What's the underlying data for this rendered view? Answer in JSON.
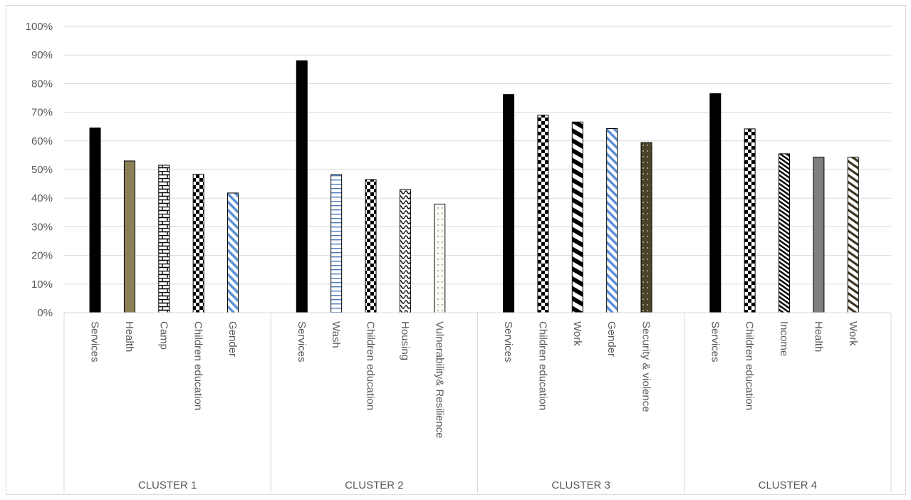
{
  "chart_data": {
    "type": "bar",
    "y_ticks": [
      "0%",
      "10%",
      "20%",
      "30%",
      "40%",
      "50%",
      "60%",
      "70%",
      "80%",
      "90%",
      "100%"
    ],
    "ylim": [
      0,
      100
    ],
    "grid": true,
    "groups": [
      {
        "name": "CLUSTER 1",
        "bars": [
          {
            "label": "Services",
            "value": 64.5,
            "pattern": "solid-black"
          },
          {
            "label": "Health",
            "value": 53,
            "pattern": "solid-olive"
          },
          {
            "label": "Camp",
            "value": 51.5,
            "pattern": "brick"
          },
          {
            "label": "Children education",
            "value": 48.3,
            "pattern": "checker"
          },
          {
            "label": "Gender",
            "value": 41.8,
            "pattern": "diagonal-blue"
          }
        ]
      },
      {
        "name": "CLUSTER 2",
        "bars": [
          {
            "label": "Services",
            "value": 88,
            "pattern": "solid-black"
          },
          {
            "label": "Wash",
            "value": 48.2,
            "pattern": "horizontal-blue"
          },
          {
            "label": "Children education",
            "value": 46.5,
            "pattern": "checker"
          },
          {
            "label": "Housing",
            "value": 43,
            "pattern": "wave"
          },
          {
            "label": "Vulnerability& Resilience",
            "value": 37.9,
            "pattern": "dots-light"
          }
        ]
      },
      {
        "name": "CLUSTER 3",
        "bars": [
          {
            "label": "Services",
            "value": 76.2,
            "pattern": "solid-black"
          },
          {
            "label": "Children education",
            "value": 69,
            "pattern": "checker"
          },
          {
            "label": "Work",
            "value": 66.6,
            "pattern": "wide-diagonal"
          },
          {
            "label": "Gender",
            "value": 64.3,
            "pattern": "diagonal-blue"
          },
          {
            "label": "Security & violence",
            "value": 59.4,
            "pattern": "dots-dark"
          }
        ]
      },
      {
        "name": "CLUSTER 4",
        "bars": [
          {
            "label": "Services",
            "value": 76.5,
            "pattern": "solid-black"
          },
          {
            "label": "Children education",
            "value": 64.2,
            "pattern": "checker"
          },
          {
            "label": "Income",
            "value": 55.5,
            "pattern": "narrow-diagonal"
          },
          {
            "label": "Health",
            "value": 54.3,
            "pattern": "solid-gray"
          },
          {
            "label": "Work",
            "value": 54.3,
            "pattern": "dark-diagonal"
          }
        ]
      }
    ]
  },
  "colors": {
    "grid": "#d9d9d9",
    "text": "#595959",
    "black": "#000000",
    "olive": "#8c8156",
    "blue": "#5b8fd6",
    "dark_olive": "#4a4329",
    "gray": "#7f7f7f"
  }
}
